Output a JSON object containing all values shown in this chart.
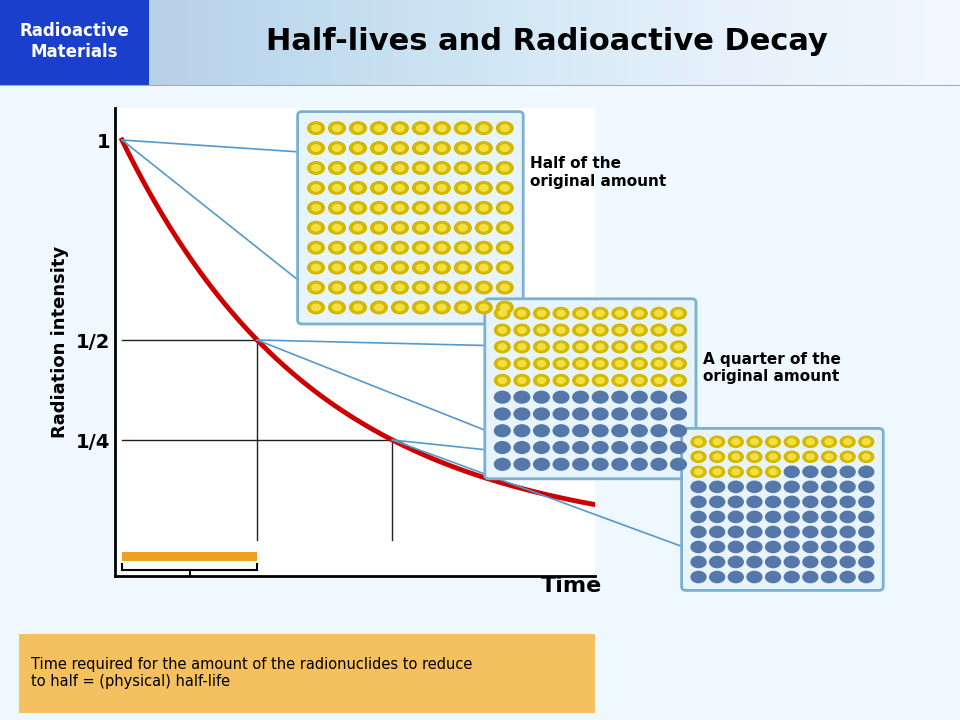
{
  "title": "Half-lives and Radioactive Decay",
  "header_label": "Radioactive\nMaterials",
  "header_bg": "#1a3fcc",
  "header_text_color": "#ffffff",
  "ylabel": "Radiation intensity",
  "xlabel": "Time",
  "decay_color": "#cc0000",
  "decay_linewidth": 3.5,
  "gridline_color": "#222222",
  "gridline_lw": 1.0,
  "halflife_bar_color": "#f0a020",
  "annotation_line_color": "#5599cc",
  "annotation_line_lw": 1.2,
  "box1_label": "Half of the\noriginal amount",
  "box2_label": "A quarter of the\noriginal amount",
  "bottom_text": "Time required for the amount of the radionuclides to reduce\nto half = (physical) half-life",
  "bottom_box_color": "#f5c060",
  "bottom_box_edge": "#c09020"
}
